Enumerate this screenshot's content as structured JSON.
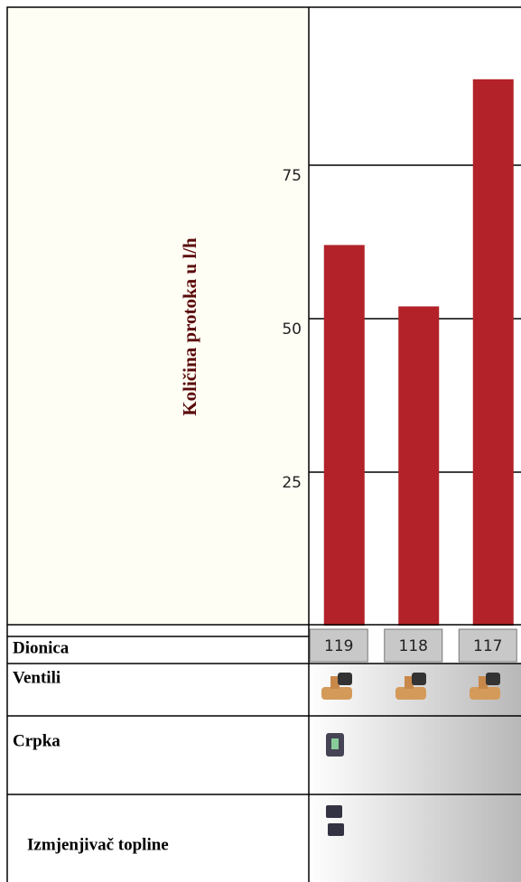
{
  "chart_data": {
    "type": "bar",
    "y_label": "Količina protoka u l/h",
    "categories": [
      "119",
      "118",
      "117"
    ],
    "values": [
      62,
      52,
      89
    ],
    "color": "#b22228",
    "ylim": [
      0,
      100
    ],
    "yticks": [
      25,
      50,
      75
    ],
    "grid": true
  },
  "table": {
    "rows": [
      "Dionica",
      "Ventili",
      "Crpka",
      "Izmjenjivač topline"
    ]
  }
}
